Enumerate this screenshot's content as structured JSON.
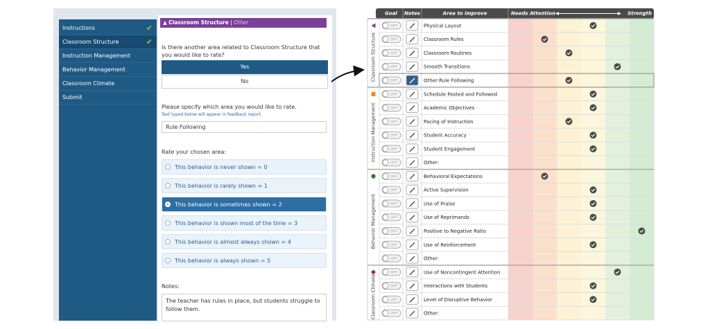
{
  "sidebar": {
    "items": [
      {
        "label": "Instructions",
        "done": true
      },
      {
        "label": "Classroom Structure",
        "done": true,
        "active": true
      },
      {
        "label": "Instruction Management",
        "done": false
      },
      {
        "label": "Behavior Management",
        "done": false
      },
      {
        "label": "Classroom Climate",
        "done": false
      },
      {
        "label": "Submit",
        "done": false
      }
    ]
  },
  "form": {
    "header": {
      "section": "Classroom Structure",
      "divider": "|",
      "sub": "Other"
    },
    "question": "Is there another area related to Classroom Structure that you would like to rate?",
    "choices": [
      "Yes",
      "No"
    ],
    "selected_choice": 0,
    "specify_prompt": "Please specify which area you would like to rate.",
    "specify_hint": "Text typed below will appear in feedback report.",
    "specify_value": "Rule Following",
    "rate_prompt": "Rate your chosen area:",
    "rate_options": [
      "This behavior is never shown = 0",
      "This behavior is rarely shown = 1",
      "This behavior is sometimes shown = 2",
      "This behavior is shown most of the time = 3",
      "This behavior is almost always shown = 4",
      "This behavior is always shown = 5"
    ],
    "selected_rate": 2,
    "notes_label": "Notes:",
    "notes_text": "The teacher has rules in place, but students struggle to follow them."
  },
  "table": {
    "headers": {
      "goal": "Goal",
      "notes": "Notes",
      "area": "Area to improve",
      "low": "Needs Attention",
      "high": "Strength"
    },
    "groups": [
      {
        "name": "Classroom Structure",
        "rows": [
          {
            "goal": "OFF",
            "area": "Physical Layout",
            "rating": 3
          },
          {
            "goal": "OFF",
            "area": "Classroom Rules",
            "rating": 1
          },
          {
            "goal": "OFF",
            "area": "Classroom Routines",
            "rating": 2
          },
          {
            "goal": "OFF",
            "area": "Smooth Transitions",
            "rating": 4
          },
          {
            "goal": "OFF",
            "area": "Other:Rule Following",
            "rating": 2,
            "highlighted": true
          }
        ]
      },
      {
        "name": "Instruction Management",
        "rows": [
          {
            "goal": "OFF",
            "area": "Schedule Posted and Followed",
            "rating": 3
          },
          {
            "goal": "OFF",
            "area": "Academic Objectives",
            "rating": 3
          },
          {
            "goal": "OFF",
            "area": "Pacing of Instruction",
            "rating": 2
          },
          {
            "goal": "OFF",
            "area": "Student Accuracy",
            "rating": 3
          },
          {
            "goal": "OFF",
            "area": "Student Engagement",
            "rating": 3
          },
          {
            "goal": "OFF",
            "area": "Other:",
            "rating": null
          }
        ]
      },
      {
        "name": "Behavior Management",
        "rows": [
          {
            "goal": "OFF",
            "area": "Behavioral Expectations",
            "rating": 1
          },
          {
            "goal": "OFF",
            "area": "Active Supervision",
            "rating": 3
          },
          {
            "goal": "OFF",
            "area": "Use of Praise",
            "rating": 3
          },
          {
            "goal": "OFF",
            "area": "Use of Reprimands",
            "rating": 3
          },
          {
            "goal": "OFF",
            "area": "Positive to Negative Ratio",
            "rating": 5
          },
          {
            "goal": "OFF",
            "area": "Use of Reinforcement",
            "rating": 3
          },
          {
            "goal": "OFF",
            "area": "Other:",
            "rating": null
          }
        ]
      },
      {
        "name": "Classroom Climate",
        "rows": [
          {
            "goal": "OFF",
            "area": "Use of Noncontingent Attention",
            "rating": 4
          },
          {
            "goal": "OFF",
            "area": "Interactions with Students",
            "rating": 3
          },
          {
            "goal": "OFF",
            "area": "Level of Disruptive Behavior",
            "rating": 3
          },
          {
            "goal": "OFF",
            "area": "Other:",
            "rating": null
          }
        ]
      }
    ]
  }
}
